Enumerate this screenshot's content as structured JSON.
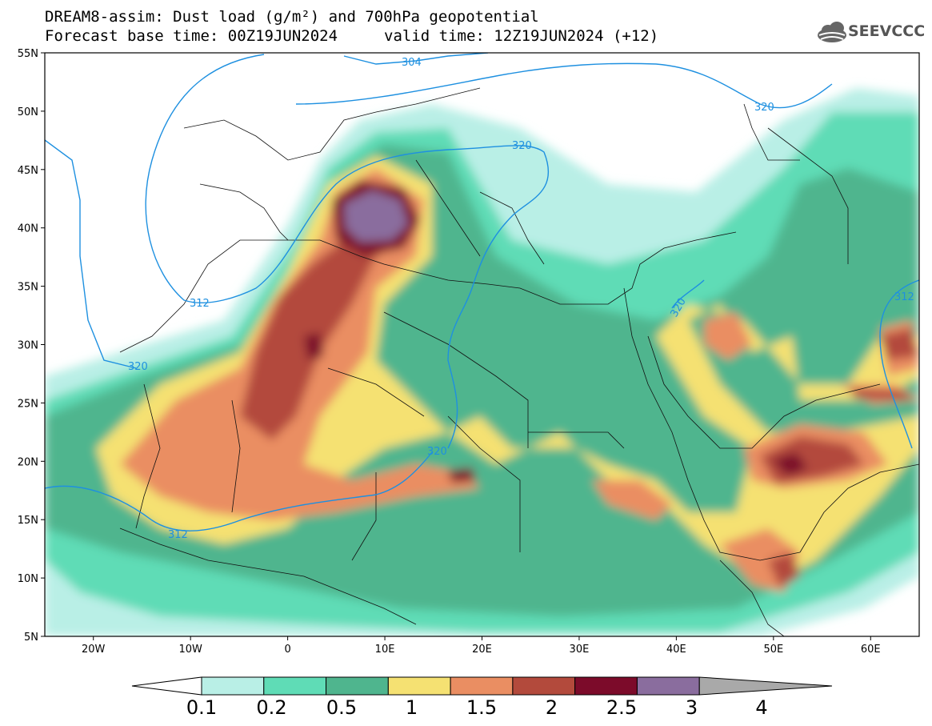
{
  "title": {
    "line1": "DREAM8-assim: Dust load (g/m²) and 700hPa geopotential",
    "line2_left": "Forecast base time: 00Z19JUN2024",
    "line2_right": "valid time: 12Z19JUN2024 (+12)"
  },
  "logo": {
    "text": "SEEVCCC",
    "icon": "cloud-icon"
  },
  "map": {
    "projection": "lat-lon",
    "lon_range": [
      -25,
      65
    ],
    "lat_range": [
      5,
      55
    ],
    "lat_ticks": [
      "55N",
      "50N",
      "45N",
      "40N",
      "35N",
      "30N",
      "25N",
      "20N",
      "15N",
      "10N",
      "5N"
    ],
    "lon_ticks": [
      "20W",
      "10W",
      "0",
      "10E",
      "20E",
      "30E",
      "40E",
      "50E",
      "60E"
    ],
    "contour_labels": [
      "304",
      "312",
      "320",
      "320",
      "320",
      "312",
      "320",
      "312"
    ]
  },
  "colorbar": {
    "labels": [
      "0.1",
      "0.2",
      "0.5",
      "1",
      "1.5",
      "2",
      "2.5",
      "3",
      "4"
    ],
    "colors": [
      "#b9efe6",
      "#5fdcb6",
      "#4fb58e",
      "#f5e172",
      "#ea8e62",
      "#b34a3c",
      "#7c0b2a",
      "#8a6d9e",
      "#a9a9a9"
    ]
  }
}
